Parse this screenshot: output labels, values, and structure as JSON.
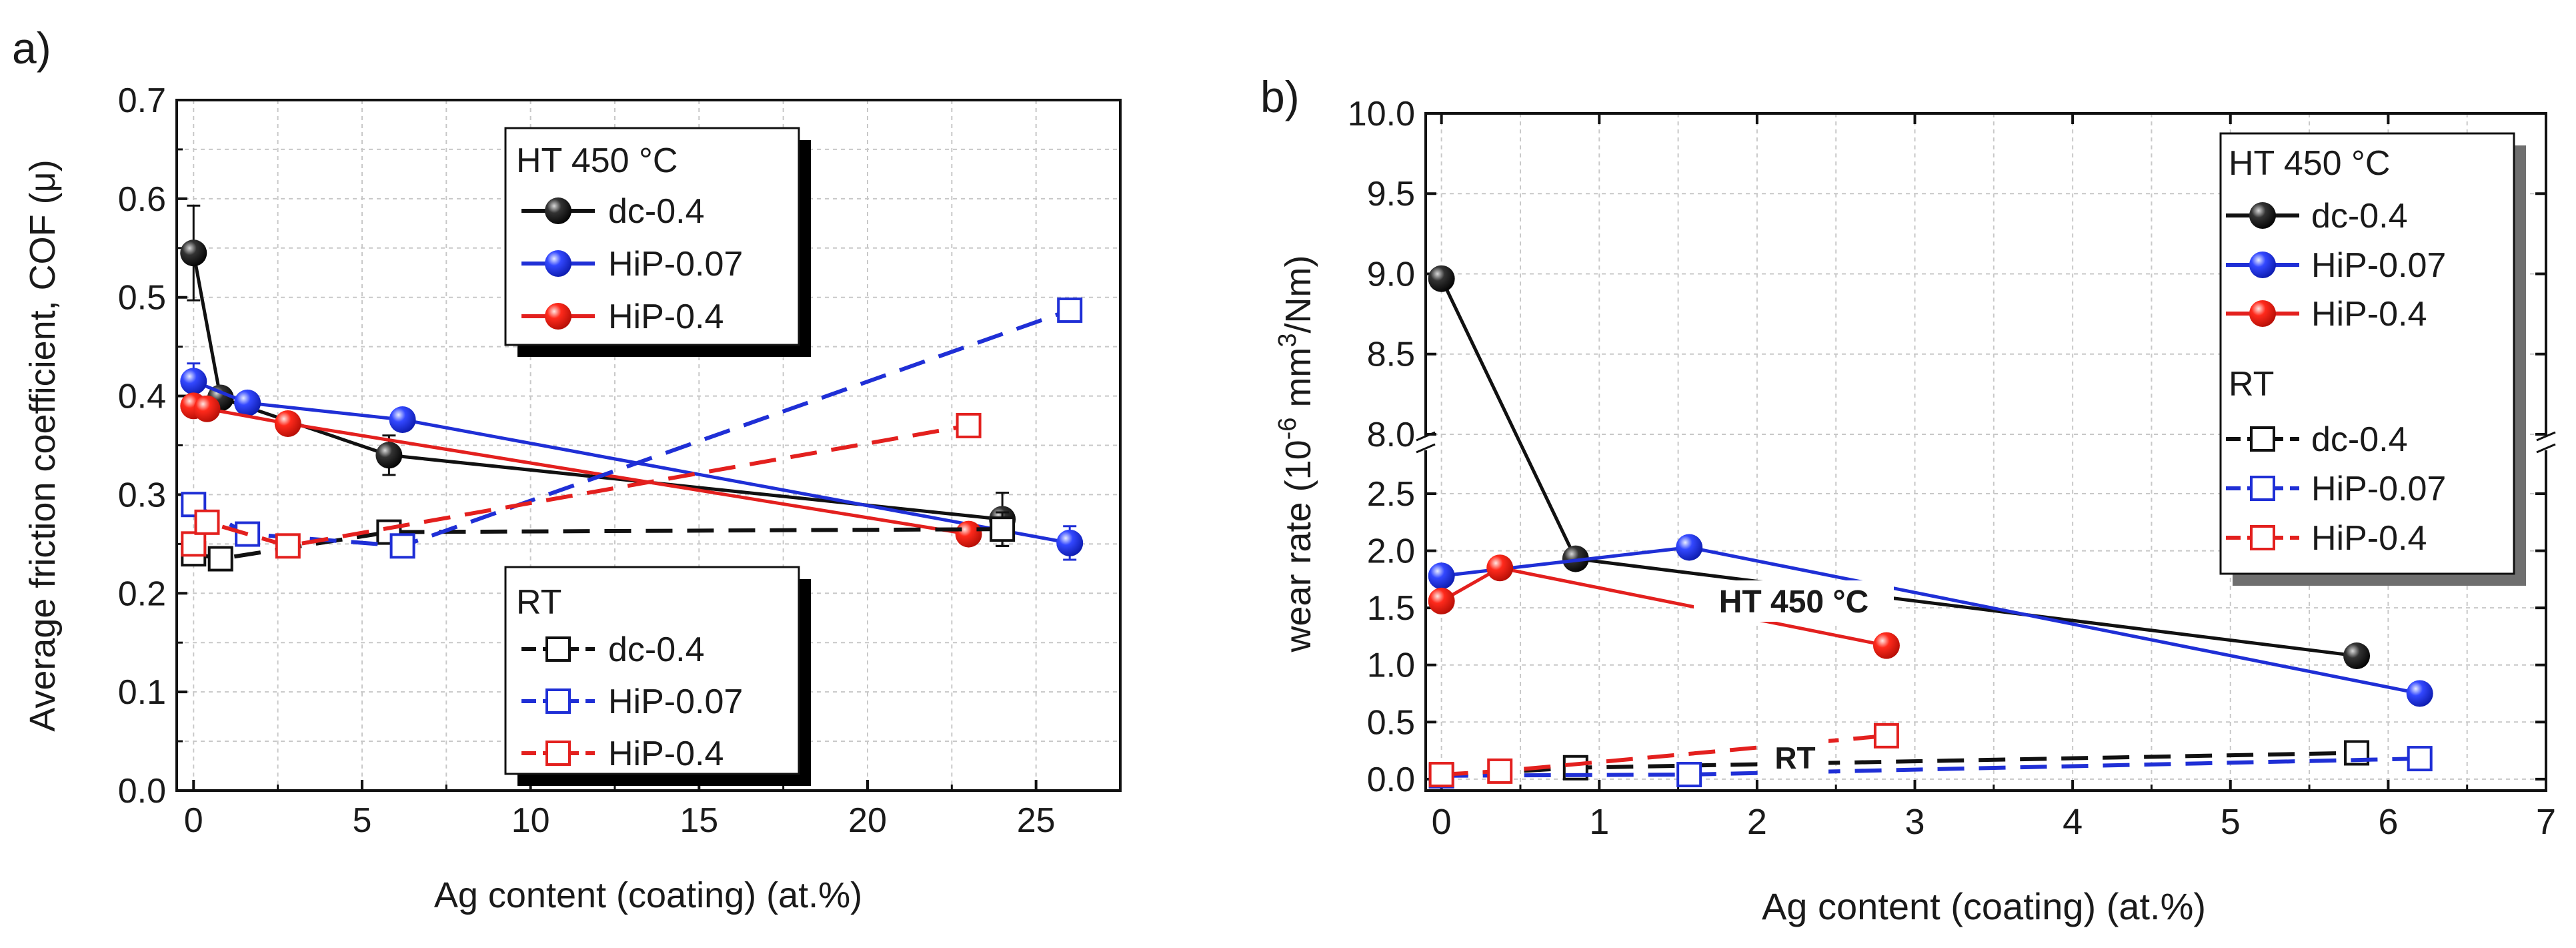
{
  "chart_data": [
    {
      "panel_label": "a)",
      "type": "line",
      "xlabel": "Ag content (coating) (at.%)",
      "ylabel": "Average friction coefficient, COF (μ)",
      "xlim": [
        -0.5,
        27.5
      ],
      "ylim": [
        0.0,
        0.7
      ],
      "xticks": [
        "0",
        "5",
        "10",
        "15",
        "20",
        "25"
      ],
      "yticks": [
        "0.0",
        "0.1",
        "0.2",
        "0.3",
        "0.4",
        "0.5",
        "0.6",
        "0.7"
      ],
      "grid": true,
      "legends": [
        {
          "title": "HT 450 °C",
          "entries": [
            "dc-0.4",
            "HiP-0.07",
            "HiP-0.4"
          ]
        },
        {
          "title": "RT",
          "entries": [
            "dc-0.4",
            "HiP-0.07",
            "HiP-0.4"
          ]
        }
      ],
      "series": [
        {
          "name": "dc-0.4",
          "group": "HT 450 °C",
          "color": "#111111",
          "marker": "filled-circle",
          "line": "solid",
          "x": [
            0,
            0.8,
            5.8,
            24.0
          ],
          "y": [
            0.545,
            0.398,
            0.34,
            0.275
          ],
          "err": [
            0.048,
            0.0,
            0.02,
            0.027
          ]
        },
        {
          "name": "HiP-0.07",
          "group": "HT 450 °C",
          "color": "#1f2fd6",
          "marker": "filled-circle",
          "line": "solid",
          "x": [
            0,
            1.6,
            6.2,
            26.0
          ],
          "y": [
            0.415,
            0.393,
            0.376,
            0.251
          ],
          "err": [
            0.018,
            0.0,
            0.0,
            0.017
          ]
        },
        {
          "name": "HiP-0.4",
          "group": "HT 450 °C",
          "color": "#e3201e",
          "marker": "filled-circle",
          "line": "solid",
          "x": [
            0,
            0.4,
            2.8,
            23.0
          ],
          "y": [
            0.39,
            0.387,
            0.372,
            0.26
          ],
          "err": [
            0.0,
            0.0,
            0.0,
            0.0
          ]
        },
        {
          "name": "dc-0.4",
          "group": "RT",
          "color": "#111111",
          "marker": "open-square",
          "line": "dashed",
          "x": [
            0,
            0.8,
            5.8,
            24.0
          ],
          "y": [
            0.24,
            0.235,
            0.262,
            0.265
          ],
          "err": [
            0.0,
            0.0,
            0.0,
            0.017
          ]
        },
        {
          "name": "HiP-0.07",
          "group": "RT",
          "color": "#1f2fd6",
          "marker": "open-square",
          "line": "dashed",
          "x": [
            0,
            1.6,
            6.2,
            26.0
          ],
          "y": [
            0.29,
            0.26,
            0.248,
            0.487
          ],
          "err": [
            0.0,
            0.0,
            0.0,
            0.0
          ]
        },
        {
          "name": "HiP-0.4",
          "group": "RT",
          "color": "#e3201e",
          "marker": "open-square",
          "line": "dashed",
          "x": [
            0,
            0.4,
            2.8,
            23.0
          ],
          "y": [
            0.25,
            0.272,
            0.248,
            0.37
          ],
          "err": [
            0.0,
            0.0,
            0.0,
            0.0
          ]
        }
      ]
    },
    {
      "panel_label": "b)",
      "type": "line",
      "xlabel": "Ag content (coating) (at.%)",
      "ylabel_main": "wear rate (10",
      "ylabel_sup1": "-6",
      "ylabel_mid": " mm",
      "ylabel_sup2": "3",
      "ylabel_end": "/Nm)",
      "xlim": [
        -0.1,
        7.0
      ],
      "ylim_lower": [
        -0.1,
        2.95
      ],
      "ylim_upper": [
        7.95,
        10.0
      ],
      "xticks": [
        "0",
        "1",
        "2",
        "3",
        "4",
        "5",
        "6",
        "7"
      ],
      "yticks_lower": [
        "0.0",
        "0.5",
        "1.0",
        "1.5",
        "2.0",
        "2.5"
      ],
      "yticks_upper": [
        "8.0",
        "8.5",
        "9.0",
        "9.5",
        "10.0"
      ],
      "axis_break": true,
      "grid": true,
      "annotations": [
        "HT 450 °C",
        "RT"
      ],
      "legend": {
        "groups": [
          {
            "title": "HT 450 °C",
            "entries": [
              "dc-0.4",
              "HiP-0.07",
              "HiP-0.4"
            ]
          },
          {
            "title": "RT",
            "entries": [
              "dc-0.4",
              "HiP-0.07",
              "HiP-0.4"
            ]
          }
        ]
      },
      "series": [
        {
          "name": "dc-0.4",
          "group": "HT 450 °C",
          "color": "#111111",
          "marker": "filled-circle",
          "line": "solid",
          "x": [
            0,
            0.85,
            5.8
          ],
          "y": [
            8.97,
            1.93,
            1.08
          ]
        },
        {
          "name": "HiP-0.07",
          "group": "HT 450 °C",
          "color": "#1f2fd6",
          "marker": "filled-circle",
          "line": "solid",
          "x": [
            0,
            1.57,
            6.2
          ],
          "y": [
            1.78,
            2.03,
            0.75
          ]
        },
        {
          "name": "HiP-0.4",
          "group": "HT 450 °C",
          "color": "#e3201e",
          "marker": "filled-circle",
          "line": "solid",
          "x": [
            0,
            0.37,
            2.82
          ],
          "y": [
            1.56,
            1.85,
            1.17
          ]
        },
        {
          "name": "dc-0.4",
          "group": "RT",
          "color": "#111111",
          "marker": "open-square",
          "line": "dashed",
          "x": [
            0,
            0.85,
            5.8
          ],
          "y": [
            0.03,
            0.1,
            0.23
          ]
        },
        {
          "name": "HiP-0.07",
          "group": "RT",
          "color": "#1f2fd6",
          "marker": "open-square",
          "line": "dashed",
          "x": [
            0,
            1.57,
            6.2
          ],
          "y": [
            0.03,
            0.04,
            0.18
          ]
        },
        {
          "name": "HiP-0.4",
          "group": "RT",
          "color": "#e3201e",
          "marker": "open-square",
          "line": "dashed",
          "x": [
            0,
            0.37,
            2.82
          ],
          "y": [
            0.04,
            0.07,
            0.38
          ]
        }
      ]
    }
  ]
}
